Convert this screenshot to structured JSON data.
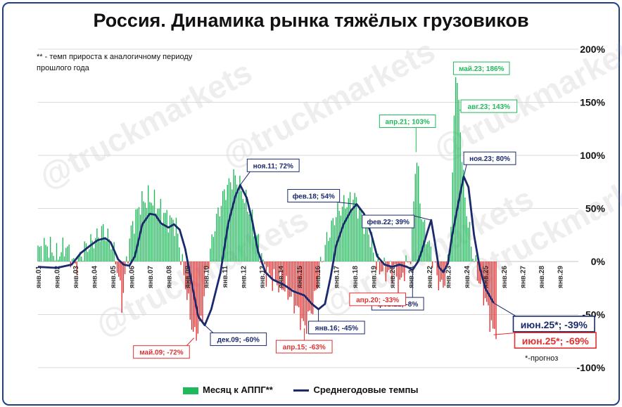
{
  "title": "Россия. Динамика рынка тяжёлых грузовиков",
  "note": "** - темп прироста к аналогичному периоду прошлого года",
  "forecast_note": "*-прогноз",
  "watermark": "@truckmarkets",
  "legend": {
    "bars": "Месяц к АППГ**",
    "line": "Среднегодовые темпы"
  },
  "colors": {
    "positive": "#1fb85a",
    "negative": "#e03030",
    "line": "#1a2a6c",
    "grid": "#d9d9d9"
  },
  "chart_data": {
    "type": "bar",
    "ylim": [
      -100,
      200
    ],
    "yticks": [
      -100,
      -50,
      0,
      50,
      100,
      150,
      200
    ],
    "ytick_labels": [
      "-100%",
      "-50%",
      "0%",
      "50%",
      "100%",
      "150%",
      "200%"
    ],
    "x_start_year": 2001,
    "x_end_year": 2030,
    "xtick_labels": [
      "янв.01",
      "янв.02",
      "янв.03",
      "янв.04",
      "янв.05",
      "янв.06",
      "янв.07",
      "янв.08",
      "янв.09",
      "янв.10",
      "янв.11",
      "янв.12",
      "янв.13",
      "янв.14",
      "янв.15",
      "янв.16",
      "янв.17",
      "янв.18",
      "янв.19",
      "янв.20",
      "янв.21",
      "янв.22",
      "янв.23",
      "янв.24",
      "янв.25",
      "янв.26",
      "янв.27",
      "янв.28",
      "янв.29"
    ],
    "series": [
      {
        "name": "Месяц к АППГ**",
        "anchors": [
          [
            2001.0,
            10
          ],
          [
            2001.5,
            15
          ],
          [
            2002.0,
            5
          ],
          [
            2002.5,
            15
          ],
          [
            2003.0,
            -5
          ],
          [
            2003.5,
            12
          ],
          [
            2004.0,
            20
          ],
          [
            2004.5,
            30
          ],
          [
            2005.0,
            15
          ],
          [
            2005.3,
            -10
          ],
          [
            2005.5,
            -40
          ],
          [
            2005.8,
            5
          ],
          [
            2006.0,
            30
          ],
          [
            2006.5,
            55
          ],
          [
            2007.0,
            60
          ],
          [
            2007.5,
            50
          ],
          [
            2008.0,
            40
          ],
          [
            2008.4,
            35
          ],
          [
            2008.9,
            -20
          ],
          [
            2009.2,
            -55
          ],
          [
            2009.4,
            -72
          ],
          [
            2009.8,
            -55
          ],
          [
            2010.0,
            -15
          ],
          [
            2010.5,
            35
          ],
          [
            2011.0,
            65
          ],
          [
            2011.5,
            80
          ],
          [
            2011.8,
            72
          ],
          [
            2012.3,
            50
          ],
          [
            2012.8,
            20
          ],
          [
            2013.2,
            -10
          ],
          [
            2013.8,
            -20
          ],
          [
            2014.3,
            -25
          ],
          [
            2014.8,
            -40
          ],
          [
            2015.3,
            -63
          ],
          [
            2015.8,
            -40
          ],
          [
            2016.1,
            -10
          ],
          [
            2016.5,
            20
          ],
          [
            2017.0,
            45
          ],
          [
            2017.5,
            55
          ],
          [
            2018.0,
            60
          ],
          [
            2018.3,
            45
          ],
          [
            2018.8,
            25
          ],
          [
            2019.2,
            -5
          ],
          [
            2019.8,
            -10
          ],
          [
            2020.2,
            -5
          ],
          [
            2020.3,
            -33
          ],
          [
            2020.6,
            -10
          ],
          [
            2021.0,
            5
          ],
          [
            2021.3,
            103
          ],
          [
            2021.6,
            40
          ],
          [
            2022.0,
            15
          ],
          [
            2022.3,
            -5
          ],
          [
            2022.6,
            -25
          ],
          [
            2022.9,
            -15
          ],
          [
            2023.2,
            40
          ],
          [
            2023.4,
            186
          ],
          [
            2023.6,
            143
          ],
          [
            2023.9,
            60
          ],
          [
            2024.3,
            10
          ],
          [
            2024.7,
            -20
          ],
          [
            2025.0,
            -35
          ],
          [
            2025.45,
            -69
          ],
          [
            2025.6,
            -60
          ]
        ]
      },
      {
        "name": "Среднегодовые темпы",
        "anchors": [
          [
            2001.0,
            -5
          ],
          [
            2002.0,
            -6
          ],
          [
            2002.8,
            -3
          ],
          [
            2003.3,
            8
          ],
          [
            2003.8,
            15
          ],
          [
            2004.2,
            20
          ],
          [
            2004.6,
            22
          ],
          [
            2004.9,
            18
          ],
          [
            2005.3,
            2
          ],
          [
            2005.6,
            -3
          ],
          [
            2005.9,
            -4
          ],
          [
            2006.2,
            5
          ],
          [
            2006.6,
            35
          ],
          [
            2007.0,
            45
          ],
          [
            2007.3,
            44
          ],
          [
            2007.6,
            36
          ],
          [
            2008.0,
            32
          ],
          [
            2008.3,
            35
          ],
          [
            2008.6,
            30
          ],
          [
            2008.9,
            12
          ],
          [
            2009.3,
            -25
          ],
          [
            2009.6,
            -52
          ],
          [
            2009.95,
            -60
          ],
          [
            2010.3,
            -45
          ],
          [
            2010.8,
            -10
          ],
          [
            2011.2,
            35
          ],
          [
            2011.6,
            62
          ],
          [
            2011.85,
            72
          ],
          [
            2012.2,
            60
          ],
          [
            2012.5,
            38
          ],
          [
            2012.8,
            10
          ],
          [
            2013.2,
            -10
          ],
          [
            2013.6,
            -17
          ],
          [
            2014.2,
            -22
          ],
          [
            2014.7,
            -28
          ],
          [
            2015.3,
            -32
          ],
          [
            2015.7,
            -40
          ],
          [
            2016.05,
            -45
          ],
          [
            2016.4,
            -40
          ],
          [
            2016.7,
            -15
          ],
          [
            2017.0,
            15
          ],
          [
            2017.4,
            35
          ],
          [
            2017.8,
            48
          ],
          [
            2018.1,
            54
          ],
          [
            2018.5,
            45
          ],
          [
            2018.9,
            25
          ],
          [
            2019.2,
            5
          ],
          [
            2019.6,
            -3
          ],
          [
            2020.0,
            -5
          ],
          [
            2020.4,
            -3
          ],
          [
            2020.8,
            -5
          ],
          [
            2021.1,
            -8
          ],
          [
            2021.4,
            0
          ],
          [
            2021.6,
            10
          ],
          [
            2021.9,
            28
          ],
          [
            2022.1,
            39
          ],
          [
            2022.3,
            18
          ],
          [
            2022.5,
            -5
          ],
          [
            2022.75,
            -10
          ],
          [
            2023.0,
            -2
          ],
          [
            2023.2,
            22
          ],
          [
            2023.45,
            45
          ],
          [
            2023.7,
            68
          ],
          [
            2023.85,
            80
          ],
          [
            2024.1,
            70
          ],
          [
            2024.4,
            25
          ],
          [
            2024.7,
            -5
          ],
          [
            2025.0,
            -25
          ],
          [
            2025.45,
            -39
          ]
        ]
      }
    ],
    "annotations": [
      {
        "label": "май.23; 186%",
        "x": 2023.37,
        "y": 186,
        "style": "positive"
      },
      {
        "label": "авг.23; 143%",
        "x": 2023.62,
        "y": 143,
        "style": "positive"
      },
      {
        "label": "апр.21; 103%",
        "x": 2021.29,
        "y": 103,
        "style": "positive"
      },
      {
        "label": "ноя.11; 72%",
        "x": 2011.85,
        "y": 72,
        "style": "line"
      },
      {
        "label": "ноя.23; 80%",
        "x": 2023.85,
        "y": 80,
        "style": "line"
      },
      {
        "label": "фев.18; 54%",
        "x": 2018.1,
        "y": 54,
        "style": "line"
      },
      {
        "label": "фев.22; 39%",
        "x": 2022.1,
        "y": 39,
        "style": "line"
      },
      {
        "label": "фев.21; -8%",
        "x": 2021.1,
        "y": -8,
        "style": "line"
      },
      {
        "label": "дек.09; -60%",
        "x": 2009.95,
        "y": -60,
        "style": "line"
      },
      {
        "label": "янв.16; -45%",
        "x": 2016.05,
        "y": -45,
        "style": "line"
      },
      {
        "label": "июн.25*; -39%",
        "x": 2025.45,
        "y": -39,
        "style": "line-big"
      },
      {
        "label": "май.09; -72%",
        "x": 2009.37,
        "y": -72,
        "style": "negative"
      },
      {
        "label": "апр.15; -63%",
        "x": 2015.29,
        "y": -63,
        "style": "negative"
      },
      {
        "label": "апр.20; -33%",
        "x": 2020.29,
        "y": -33,
        "style": "negative"
      },
      {
        "label": "июн.25*; -69%",
        "x": 2025.45,
        "y": -69,
        "style": "negative-big"
      }
    ]
  }
}
